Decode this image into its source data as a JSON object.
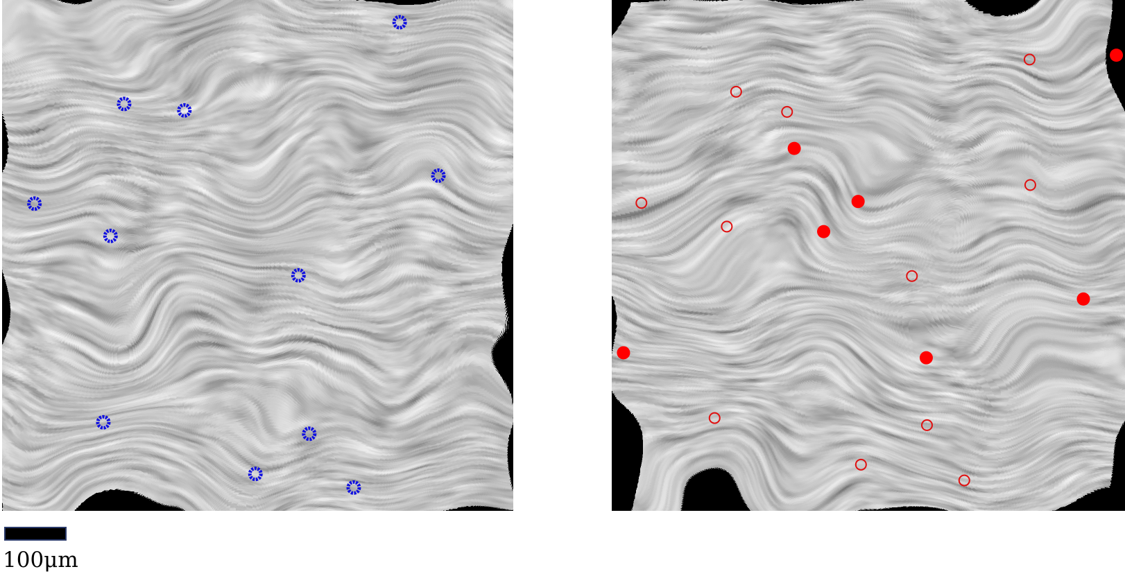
{
  "scale_bar": {
    "label": "100μm"
  }
}
